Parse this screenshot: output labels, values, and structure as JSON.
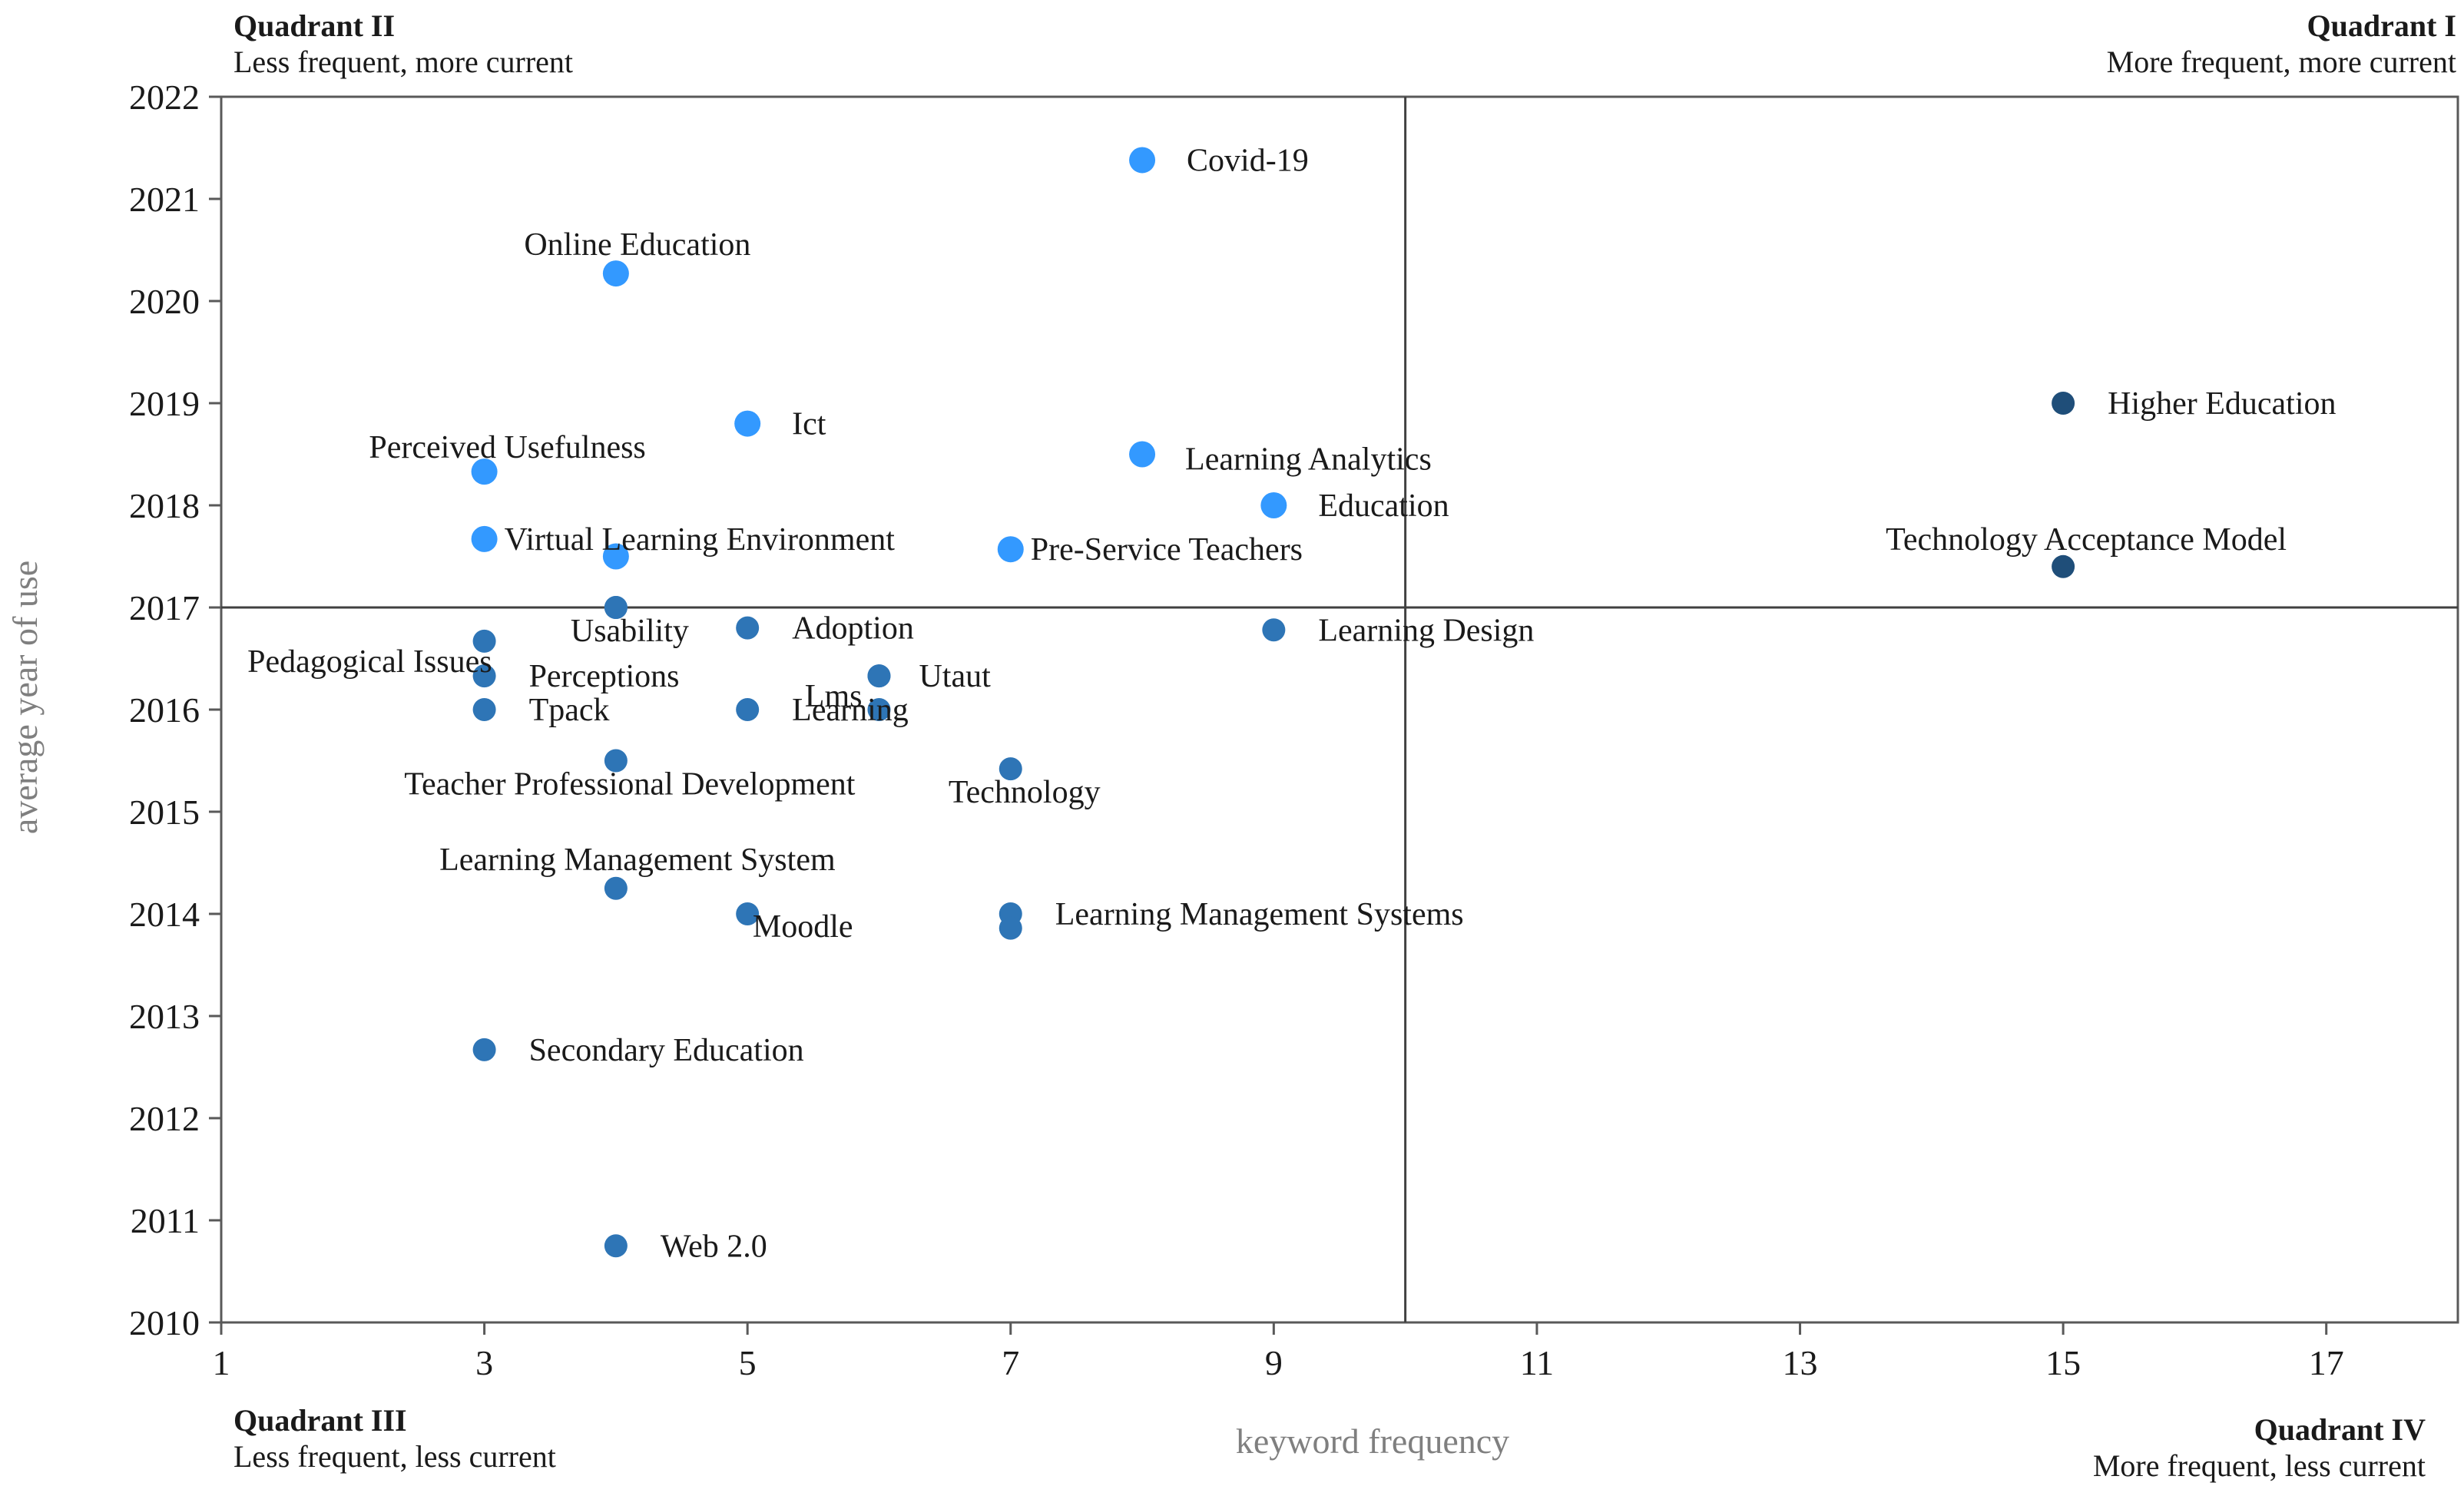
{
  "chart_data": {
    "type": "scatter",
    "title": "",
    "xlabel": "keyword frequency",
    "ylabel": "average year of use",
    "xlim": [
      1,
      18
    ],
    "ylim": [
      2010,
      2022
    ],
    "xticks": [
      1,
      3,
      5,
      7,
      9,
      11,
      13,
      15,
      17
    ],
    "yticks": [
      2010,
      2011,
      2012,
      2013,
      2014,
      2015,
      2016,
      2017,
      2018,
      2019,
      2020,
      2021,
      2022
    ],
    "divider": {
      "x": 10,
      "y": 2017
    },
    "colors": {
      "recent": "#3399ff",
      "older": "#2e75b6",
      "frequent": "#1f4e79",
      "axis": "#595959",
      "text": "#1a1a1a",
      "divider": "#404040"
    },
    "quadrants": [
      {
        "id": "quad-ii",
        "title": "Quadrant II",
        "subtitle": "Less frequent, more current"
      },
      {
        "id": "quad-i",
        "title": "Quadrant I",
        "subtitle": "More frequent, more current"
      },
      {
        "id": "quad-iii",
        "title": "Quadrant III",
        "subtitle": "Less frequent, less current"
      },
      {
        "id": "quad-iv",
        "title": "Quadrant IV",
        "subtitle": "More frequent, less current"
      }
    ],
    "points": [
      {
        "label": "Covid-19",
        "x": 8,
        "y": 2021.38,
        "group": "recent",
        "anchor": "right"
      },
      {
        "label": "Online Education",
        "x": 4,
        "y": 2020.27,
        "group": "recent",
        "anchor": "above"
      },
      {
        "label": "Ict",
        "x": 5,
        "y": 2018.8,
        "group": "recent",
        "anchor": "right"
      },
      {
        "label": "Perceived Usefulness",
        "x": 3,
        "y": 2018.33,
        "group": "recent",
        "anchor": "above-right"
      },
      {
        "label": "Learning Analytics",
        "x": 8,
        "y": 2018.5,
        "group": "recent",
        "anchor": "right-low"
      },
      {
        "label": "Education",
        "x": 9,
        "y": 2018.0,
        "group": "recent",
        "anchor": "right"
      },
      {
        "label": "Virtual Learning Environment",
        "x": 3,
        "y": 2017.67,
        "group": "recent",
        "anchor": "right-tight"
      },
      {
        "label": "",
        "x": 4,
        "y": 2017.5,
        "group": "recent",
        "anchor": "none"
      },
      {
        "label": "Pre-Service Teachers",
        "x": 7,
        "y": 2017.57,
        "group": "recent",
        "anchor": "right-tight"
      },
      {
        "label": "",
        "x": 4,
        "y": 2017.0,
        "group": "older",
        "anchor": "none"
      },
      {
        "label": "Higher Education",
        "x": 15,
        "y": 2019.0,
        "group": "frequent",
        "anchor": "right"
      },
      {
        "label": "Technology Acceptance Model",
        "x": 15,
        "y": 2017.4,
        "group": "frequent",
        "anchor": "above-mid"
      },
      {
        "label": "Usability",
        "x": 4,
        "y": 2017.0,
        "group": "older",
        "anchor": "below"
      },
      {
        "label": "Adoption",
        "x": 5,
        "y": 2016.8,
        "group": "older",
        "anchor": "right"
      },
      {
        "label": "Learning Design",
        "x": 9,
        "y": 2016.78,
        "group": "older",
        "anchor": "right"
      },
      {
        "label": "Pedagogical Issues",
        "x": 3,
        "y": 2016.67,
        "group": "older",
        "anchor": "left"
      },
      {
        "label": "Perceptions",
        "x": 3,
        "y": 2016.33,
        "group": "older",
        "anchor": "right"
      },
      {
        "label": "Lms",
        "x": 6,
        "y": 2016.33,
        "group": "older",
        "anchor": "left"
      },
      {
        "label": "Utaut",
        "x": 6,
        "y": 2016.33,
        "group": "older",
        "anchor": "right"
      },
      {
        "label": "Tpack",
        "x": 3,
        "y": 2016.0,
        "group": "older",
        "anchor": "right"
      },
      {
        "label": "Learning",
        "x": 5,
        "y": 2016.0,
        "group": "older",
        "anchor": "right"
      },
      {
        "label": "",
        "x": 6,
        "y": 2016.0,
        "group": "older",
        "anchor": "none"
      },
      {
        "label": "Teacher Professional Development",
        "x": 4,
        "y": 2015.5,
        "group": "older",
        "anchor": "below"
      },
      {
        "label": "Technology",
        "x": 7,
        "y": 2015.42,
        "group": "older",
        "anchor": "below"
      },
      {
        "label": "Learning Management System",
        "x": 4,
        "y": 2014.25,
        "group": "older",
        "anchor": "above"
      },
      {
        "label": "Moodle",
        "x": 5,
        "y": 2014.0,
        "group": "older",
        "anchor": "below-right"
      },
      {
        "label": "Learning Management Systems",
        "x": 7,
        "y": 2014.0,
        "group": "older",
        "anchor": "right"
      },
      {
        "label": "",
        "x": 7,
        "y": 2013.86,
        "group": "older",
        "anchor": "none"
      },
      {
        "label": "Secondary Education",
        "x": 3,
        "y": 2012.67,
        "group": "older",
        "anchor": "right"
      },
      {
        "label": "Web 2.0",
        "x": 4,
        "y": 2010.75,
        "group": "older",
        "anchor": "right"
      }
    ]
  }
}
